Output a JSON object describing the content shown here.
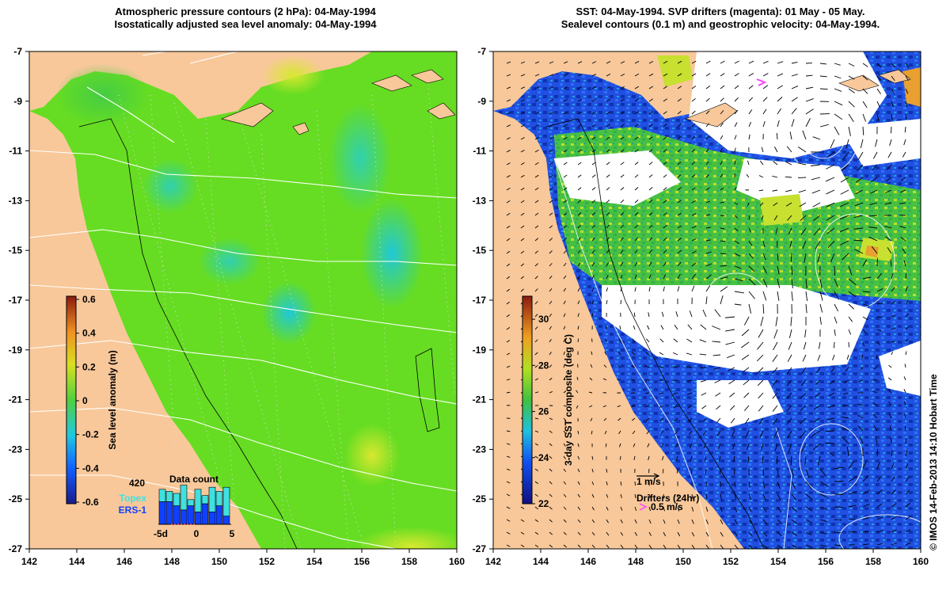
{
  "titles": {
    "left_line1": "Atmospheric pressure contours (2 hPa): 04-May-1994",
    "left_line2": "Isostatically adjusted sea level anomaly: 04-May-1994",
    "right_line1": "SST: 04-May-1994. SVP drifters (magenta): 01 May - 05 May.",
    "right_line2": "Sealevel contours (0.1 m) and geostrophic velocity: 04-May-1994."
  },
  "axes": {
    "lon_ticks": [
      "142",
      "144",
      "146",
      "148",
      "150",
      "152",
      "154",
      "156",
      "158",
      "160"
    ],
    "lat_ticks": [
      "-7",
      "-9",
      "-11",
      "-13",
      "-15",
      "-17",
      "-19",
      "-21",
      "-23",
      "-25",
      "-27"
    ],
    "lon_range": [
      142,
      160
    ],
    "lat_range": [
      -27,
      -7
    ]
  },
  "left_colorbar": {
    "label": "Sea level anomaly (m)",
    "ticks": [
      "0.6",
      "0.4",
      "0.2",
      "0",
      "-0.2",
      "-0.4",
      "-0.6"
    ],
    "range": [
      -0.6,
      0.6
    ]
  },
  "right_colorbar": {
    "label": "3-day SST composite (deg C)",
    "ticks": [
      "30",
      "28",
      "26",
      "24",
      "22"
    ],
    "range": [
      22,
      31
    ]
  },
  "data_count": {
    "title": "Data count",
    "max_label": "420",
    "topex_label": "Topex",
    "ers_label": "ERS-1",
    "x_ticks": [
      "-5d",
      "0",
      "5"
    ],
    "topex_color": "#40e0e0",
    "ers_color": "#1040ff",
    "bars_topex": [
      0.3,
      0.25,
      0.3,
      0.6,
      0.15,
      0.55,
      0.2,
      0.6,
      0.35,
      0.7
    ],
    "bars_ers": [
      0.55,
      0.55,
      0.45,
      0.35,
      0.45,
      0.3,
      0.5,
      0.3,
      0.45,
      0.2
    ]
  },
  "legend": {
    "velocity_label": "1 m/s",
    "drifters_label": "Drifters (24hr)",
    "drifter_speed_label": "0.5 m/s",
    "drifter_color": "#ff40ff"
  },
  "credit": "© IMOS 14-Feb-2013 14:10 Hobart Time",
  "colors": {
    "land": "#f8c89a",
    "ocean_base": "#66dd22",
    "cloud": "#ffffff"
  }
}
